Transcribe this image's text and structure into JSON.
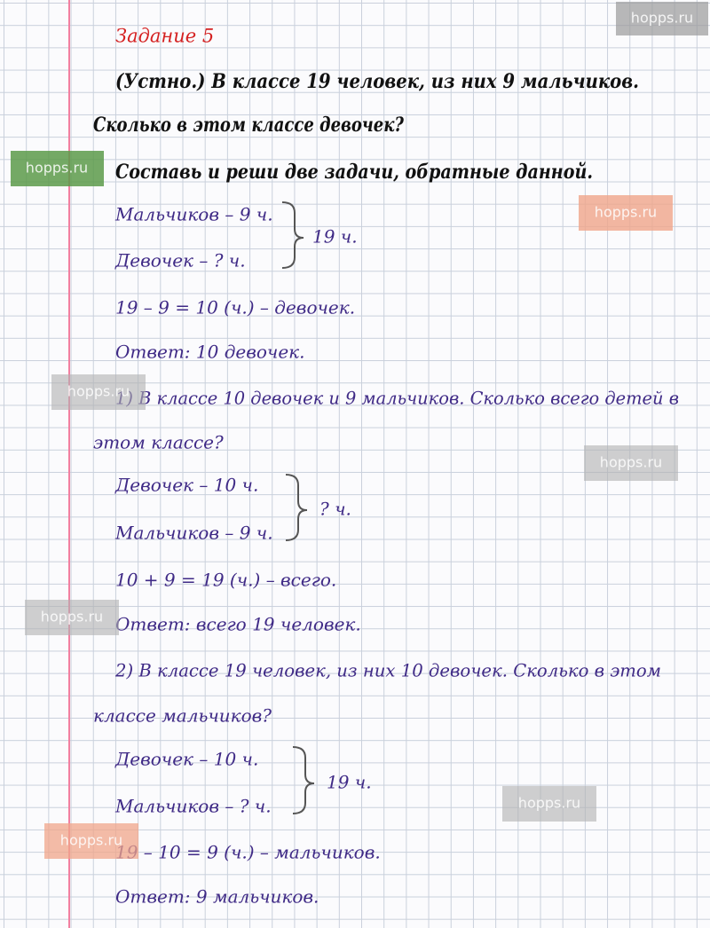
{
  "header": {
    "title": "Задание 5"
  },
  "task": {
    "lines": [
      "(Устно.) В классе 19 человек, из них 9 мальчиков.",
      "Сколько в этом классе девочек?",
      "Составь и реши две задачи, обратные данной."
    ]
  },
  "original": {
    "scheme": {
      "rows": [
        "Мальчиков – 9 ч.",
        "Девочек – ? ч."
      ],
      "total": "19 ч."
    },
    "equation": "19 – 9 = 10 (ч.) – девочек.",
    "answer": "Ответ: 10 девочек."
  },
  "problem_1": {
    "text": [
      "1) В классе 10 девочек и 9 мальчиков. Сколько всего детей в",
      "этом классе?"
    ],
    "scheme": {
      "rows": [
        "Девочек – 10 ч.",
        "Мальчиков – 9 ч."
      ],
      "total": "? ч."
    },
    "equation": "10 + 9 = 19 (ч.) – всего.",
    "answer": "Ответ: всего 19 человек."
  },
  "problem_2": {
    "text": [
      "2) В классе 19 человек, из них 10 девочек. Сколько в этом",
      "классе мальчиков?"
    ],
    "scheme": {
      "rows": [
        "Девочек – 10 ч.",
        "Мальчиков – ? ч."
      ],
      "total": "19 ч."
    },
    "equation": "19 – 10 = 9 (ч.) – мальчиков.",
    "answer": "Ответ: 9 мальчиков."
  },
  "watermarks": [
    "hopps.ru",
    "hopps.ru",
    "hopps.ru",
    "hopps.ru",
    "hopps.ru",
    "hopps.ru",
    "hopps.ru",
    "hopps.ru"
  ]
}
